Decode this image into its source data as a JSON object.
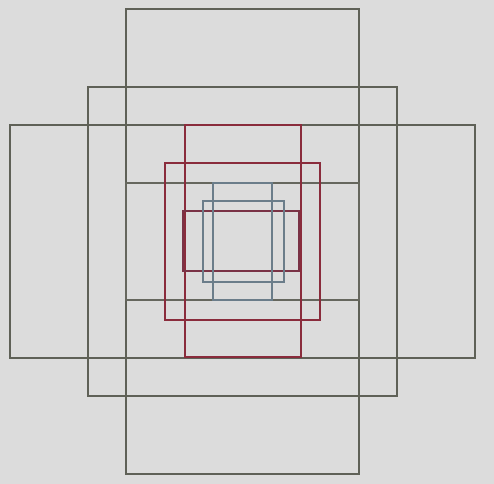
{
  "figure": {
    "description_free": true,
    "colors": {
      "background": "#dcdcdc",
      "olive_gray": "#5f6157",
      "crimson": "#8a2c3c",
      "steel_blue": "#6b7d8a",
      "plum": "#6d3a52"
    }
  }
}
